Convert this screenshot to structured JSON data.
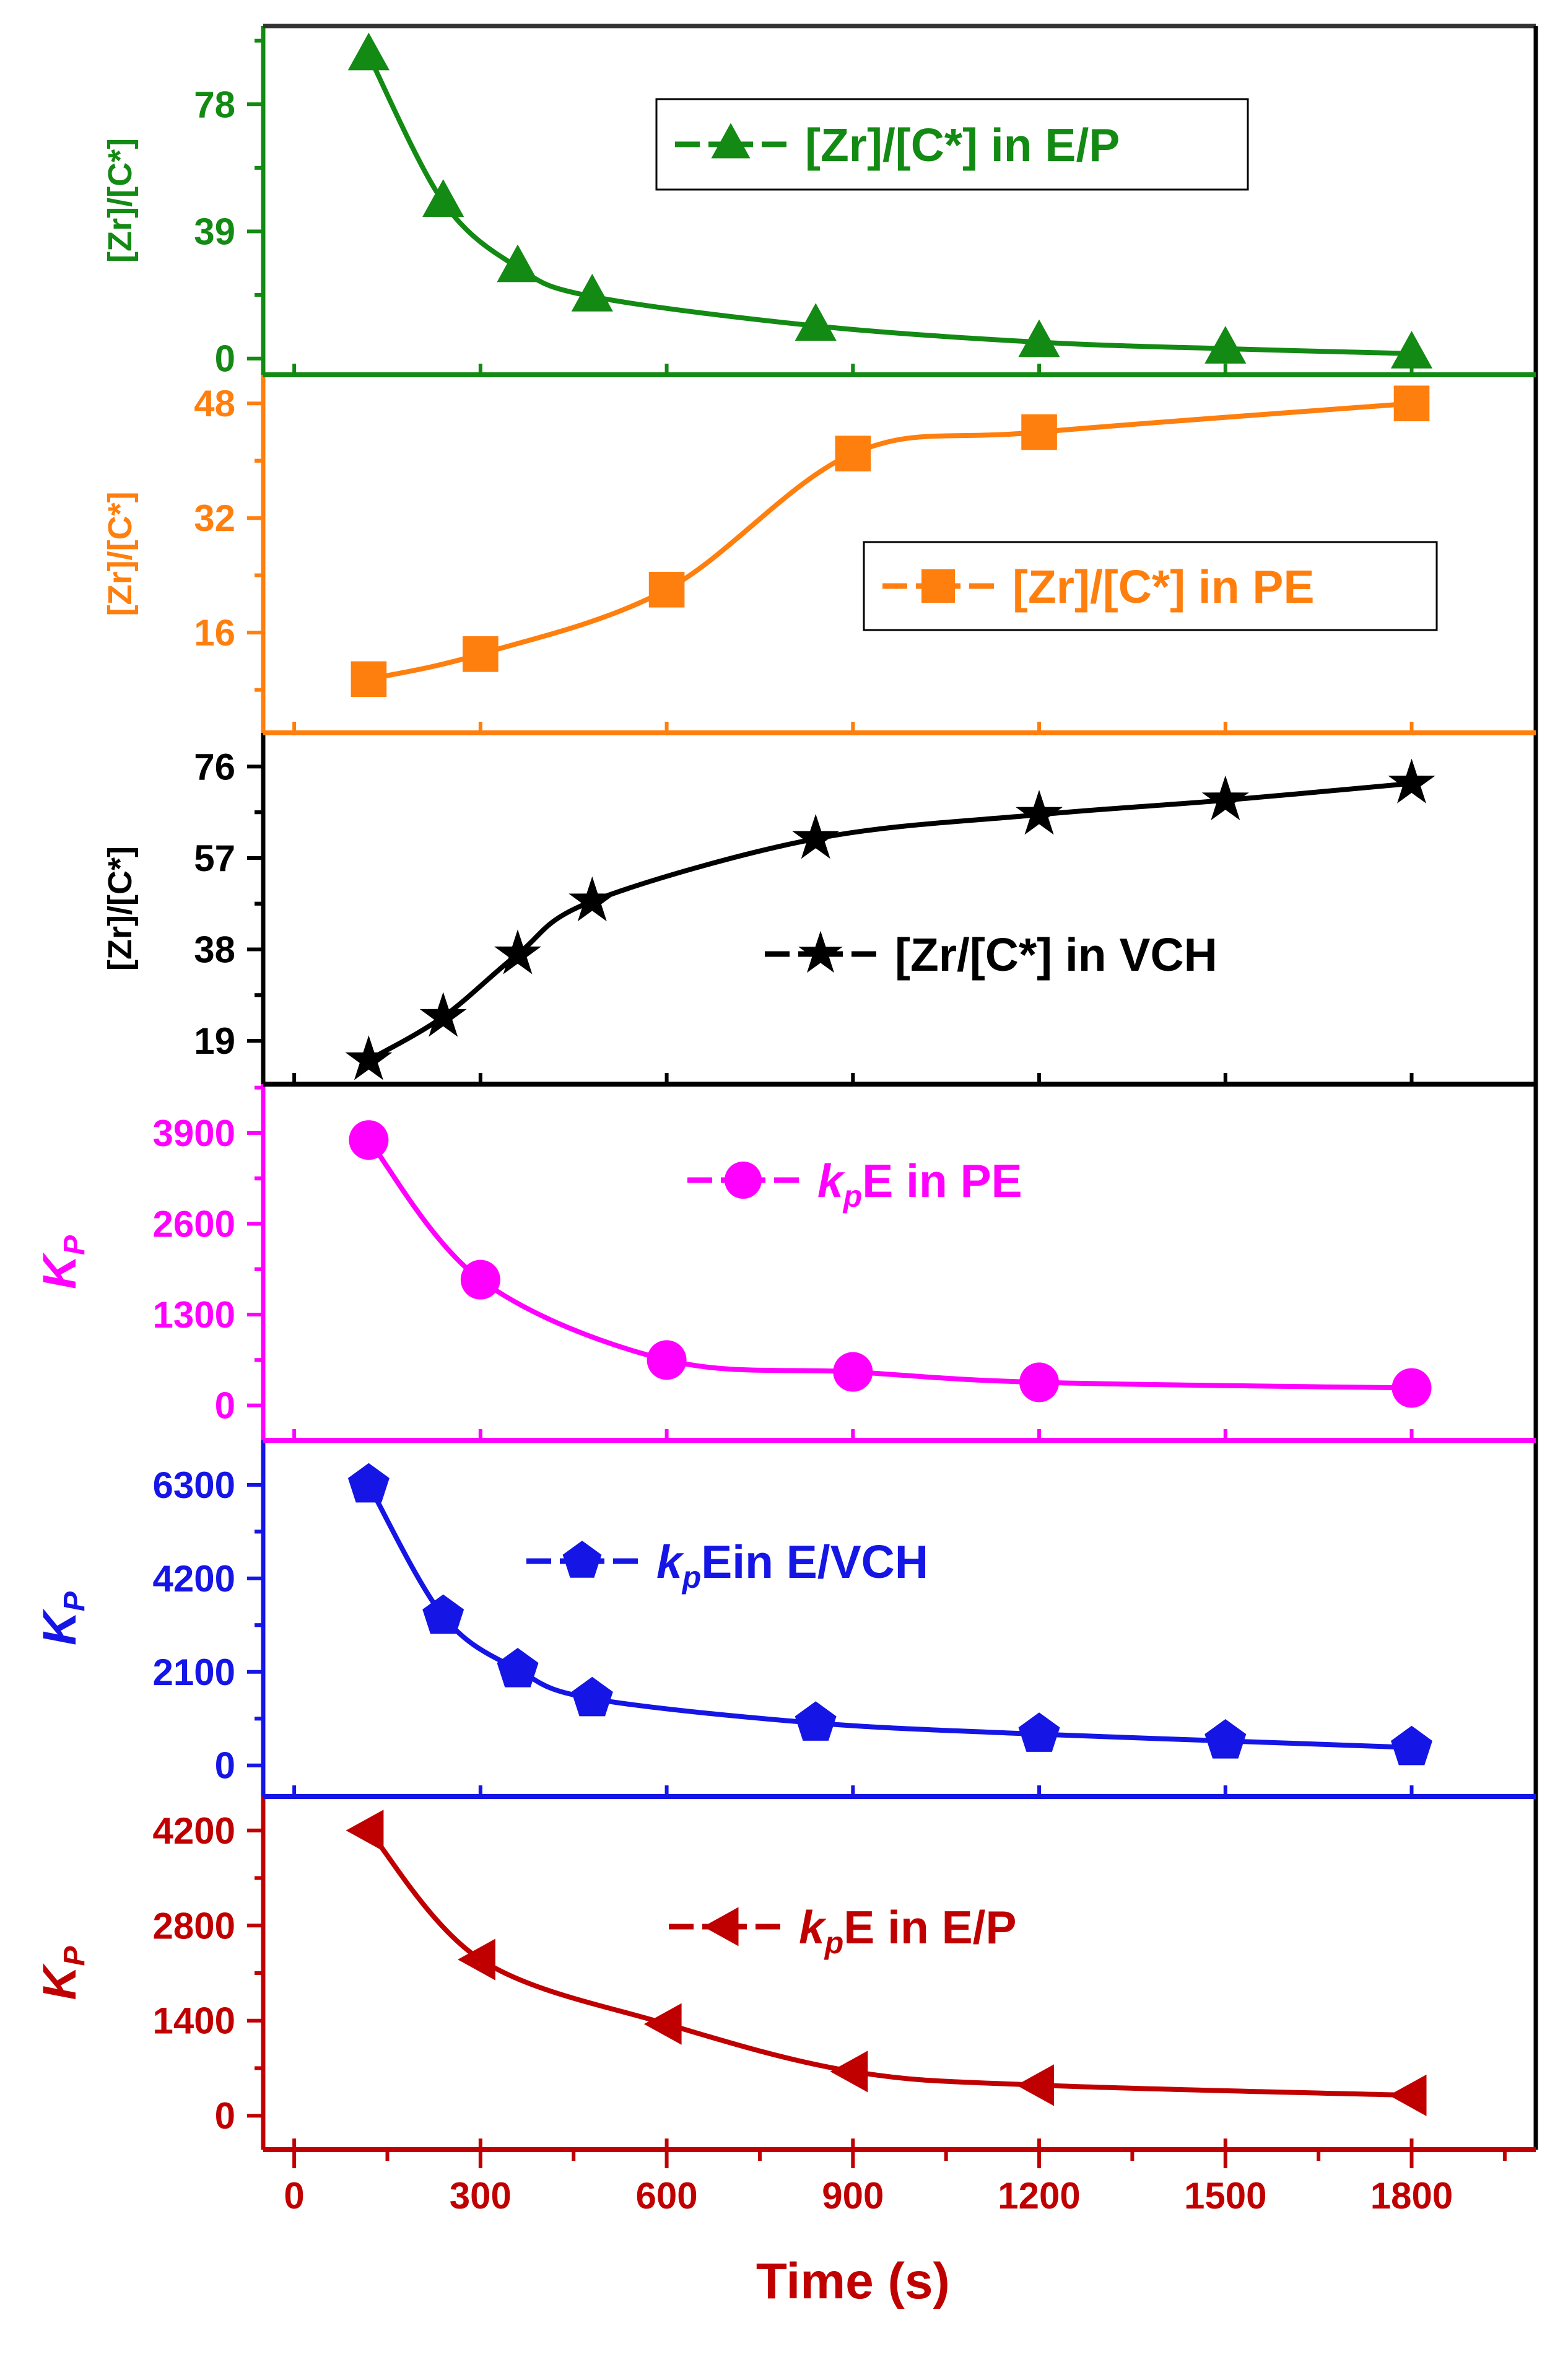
{
  "chart_data": {
    "type": "line",
    "shared_x": {
      "label": "Time (s)",
      "range": [
        -50,
        2000
      ],
      "ticks": [
        0,
        300,
        600,
        900,
        1200,
        1500,
        1800
      ],
      "tick_labels": [
        "0",
        "300",
        "600",
        "900",
        "1200",
        "1500",
        "1800"
      ],
      "color": "#c00000"
    },
    "panels": [
      {
        "id": "zr-ep",
        "ylabel": "[Zr]/[C*]",
        "ylabel_kind": "plain",
        "color": "#138a13",
        "ylim": [
          -5,
          102
        ],
        "yticks": [
          0,
          39,
          78
        ],
        "ytick_labels": [
          "0",
          "39",
          "78"
        ],
        "marker": "triangle-up",
        "legend": {
          "label": "[Zr]/[C*] in E/P",
          "position": "top-right",
          "boxed": true,
          "kind": "plain"
        },
        "series": {
          "name": "[Zr]/[C*] in E/P",
          "x": [
            120,
            240,
            360,
            480,
            840,
            1200,
            1500,
            1800
          ],
          "y": [
            93,
            48,
            28,
            19,
            10,
            5,
            3,
            1.5
          ]
        }
      },
      {
        "id": "zr-pe",
        "ylabel": "[Zr]/[C*]",
        "ylabel_kind": "plain",
        "color": "#ff7f0e",
        "ylim": [
          2,
          52
        ],
        "yticks": [
          16,
          32,
          48
        ],
        "ytick_labels": [
          "16",
          "32",
          "48"
        ],
        "marker": "square",
        "legend": {
          "label": "[Zr]/[C*] in PE",
          "position": "right",
          "boxed": true,
          "kind": "plain"
        },
        "series": {
          "name": "[Zr]/[C*] in PE",
          "x": [
            120,
            300,
            600,
            900,
            1200,
            1800
          ],
          "y": [
            9.5,
            13,
            22,
            41,
            44,
            48
          ]
        }
      },
      {
        "id": "zr-vch",
        "ylabel": "[Zr]/[C*]",
        "ylabel_kind": "plain",
        "color": "#000000",
        "ylim": [
          10,
          83
        ],
        "yticks": [
          19,
          38,
          57,
          76
        ],
        "ytick_labels": [
          "19",
          "38",
          "57",
          "76"
        ],
        "marker": "star",
        "legend": {
          "label": "[Zr/[C*] in VCH",
          "position": "right",
          "boxed": false,
          "kind": "plain"
        },
        "series": {
          "name": "[Zr/[C*] in VCH",
          "x": [
            120,
            240,
            360,
            480,
            840,
            1200,
            1500,
            1800
          ],
          "y": [
            15,
            24,
            37,
            48,
            61,
            66,
            69,
            72.5
          ]
        }
      },
      {
        "id": "kp-pe",
        "ylabel": "K",
        "ylabel_sub": "P",
        "ylabel_kind": "kp",
        "color": "#ff00ff",
        "ylim": [
          -500,
          4600
        ],
        "yticks": [
          0,
          1300,
          2600,
          3900
        ],
        "ytick_labels": [
          "0",
          "1300",
          "2600",
          "3900"
        ],
        "marker": "circle",
        "legend": {
          "k": "k",
          "sub": "p",
          "rest": "E in PE",
          "position": "top-center",
          "boxed": false,
          "kind": "kp"
        },
        "series": {
          "name": "kpE in PE",
          "x": [
            120,
            300,
            600,
            900,
            1200,
            1800
          ],
          "y": [
            3800,
            1800,
            650,
            480,
            330,
            250
          ]
        }
      },
      {
        "id": "kp-evch",
        "ylabel": "K",
        "ylabel_sub": "P",
        "ylabel_kind": "kp",
        "color": "#1515e6",
        "ylim": [
          -700,
          7300
        ],
        "yticks": [
          0,
          2100,
          4200,
          6300
        ],
        "ytick_labels": [
          "0",
          "2100",
          "4200",
          "6300"
        ],
        "marker": "pentagon",
        "legend": {
          "k": "k",
          "sub": "p",
          "rest": "Ein E/VCH",
          "position": "top-center",
          "boxed": false,
          "kind": "kp"
        },
        "series": {
          "name": "kpEin E/VCH",
          "x": [
            120,
            240,
            360,
            480,
            840,
            1200,
            1500,
            1800
          ],
          "y": [
            6300,
            3350,
            2150,
            1500,
            950,
            700,
            550,
            400
          ]
        }
      },
      {
        "id": "kp-ep",
        "ylabel": "K",
        "ylabel_sub": "P",
        "ylabel_kind": "kp",
        "color": "#c00000",
        "ylim": [
          -500,
          4700
        ],
        "yticks": [
          0,
          1400,
          2800,
          4200
        ],
        "ytick_labels": [
          "0",
          "1400",
          "2800",
          "4200"
        ],
        "marker": "triangle-left",
        "legend": {
          "k": "k",
          "sub": "p",
          "rest": "E in E/P",
          "position": "top-center",
          "boxed": false,
          "kind": "kp"
        },
        "series": {
          "name": "kpE in E/P",
          "x": [
            120,
            300,
            600,
            900,
            1200,
            1800
          ],
          "y": [
            4200,
            2300,
            1350,
            650,
            450,
            300
          ]
        }
      }
    ]
  }
}
